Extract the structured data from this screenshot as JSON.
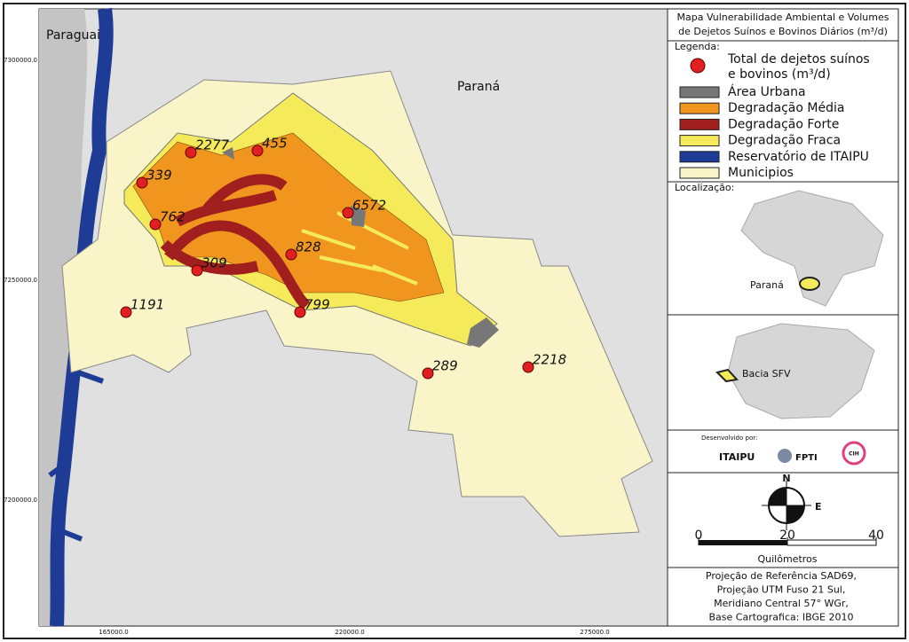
{
  "title_lines": [
    "Mapa Vulnerabilidade Ambiental e Volumes",
    "de Dejetos Suínos e Bovinos Diários (m³/d)"
  ],
  "legend": {
    "heading": "Legenda:",
    "point_label_lines": [
      "Total de dejetos suínos",
      "e bovinos (m³/d)"
    ],
    "items": [
      {
        "label": "Área Urbana",
        "color": "#777777"
      },
      {
        "label": "Degradação Média",
        "color": "#f0961e"
      },
      {
        "label": "Degradação Forte",
        "color": "#a01e1e"
      },
      {
        "label": "Degradação Fraca",
        "color": "#f5eb5a"
      },
      {
        "label": "Reservatório de ITAIPU",
        "color": "#1e3c96"
      },
      {
        "label": "Municipios",
        "color": "#faf5c8"
      }
    ]
  },
  "location": {
    "heading": "Localização:",
    "state_label": "Paraná",
    "basin_label": "Bacia SFV"
  },
  "credits": {
    "heading": "Desenvolvido por:",
    "logos": [
      "ITAIPU",
      "FPTI",
      "CIH"
    ]
  },
  "compass": {
    "north": "N",
    "east": "E"
  },
  "scale": {
    "ticks": [
      0,
      20,
      40
    ],
    "unit": "Quilômetros"
  },
  "projection_lines": [
    "Projeção de Referência SAD69,",
    "Projeção UTM Fuso 21 Sul,",
    "Meridiano Central 57° WGr,",
    "Base Cartografica: IBGE 2010"
  ],
  "map": {
    "labels": [
      "Paraguai",
      "Paraná"
    ],
    "y_coords": [
      "7300000.0",
      "7250000.0",
      "7200000.0"
    ],
    "x_coords": [
      "165000.0",
      "220000.0",
      "275000.0"
    ],
    "points": [
      {
        "value": 2277
      },
      {
        "value": 455
      },
      {
        "value": 339
      },
      {
        "value": 6572
      },
      {
        "value": 762
      },
      {
        "value": 828
      },
      {
        "value": 309
      },
      {
        "value": 799
      },
      {
        "value": 1191
      },
      {
        "value": 289
      },
      {
        "value": 2218
      }
    ]
  }
}
